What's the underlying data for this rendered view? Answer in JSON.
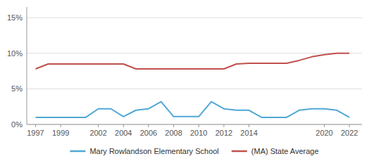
{
  "chart_data": {
    "type": "line",
    "x": [
      1997,
      1998,
      1999,
      2000,
      2001,
      2002,
      2003,
      2004,
      2005,
      2006,
      2007,
      2008,
      2009,
      2010,
      2011,
      2012,
      2013,
      2014,
      2015,
      2016,
      2017,
      2018,
      2019,
      2020,
      2021,
      2022
    ],
    "series": [
      {
        "name": "Mary Rowlandson Elementary School",
        "color": "#4fa8d5",
        "values": [
          1.0,
          1.0,
          1.0,
          1.0,
          1.0,
          2.2,
          2.2,
          1.1,
          2.0,
          2.2,
          3.2,
          1.1,
          1.1,
          1.1,
          3.2,
          2.2,
          2.0,
          2.0,
          1.0,
          1.0,
          1.0,
          2.0,
          2.2,
          2.2,
          2.0,
          1.0
        ]
      },
      {
        "name": "(MA) State Average",
        "color": "#c0504d",
        "values": [
          7.8,
          8.5,
          8.5,
          8.5,
          8.5,
          8.5,
          8.5,
          8.5,
          7.8,
          7.8,
          7.8,
          7.8,
          7.8,
          7.8,
          7.8,
          7.8,
          8.5,
          8.6,
          8.6,
          8.6,
          8.6,
          9.0,
          9.5,
          9.8,
          10.0,
          10.0
        ]
      }
    ],
    "xlim": [
      1996.3,
      2023.0
    ],
    "xticks": [
      1997,
      1999,
      2002,
      2004,
      2006,
      2008,
      2010,
      2012,
      2014,
      2020,
      2022
    ],
    "ylim": [
      0,
      16.5
    ],
    "yticks": [
      {
        "value": 0,
        "label": "0%"
      },
      {
        "value": 5,
        "label": "5%"
      },
      {
        "value": 10,
        "label": "10%"
      },
      {
        "value": 15,
        "label": "15%"
      }
    ],
    "grid": true,
    "legend": "bottom"
  }
}
